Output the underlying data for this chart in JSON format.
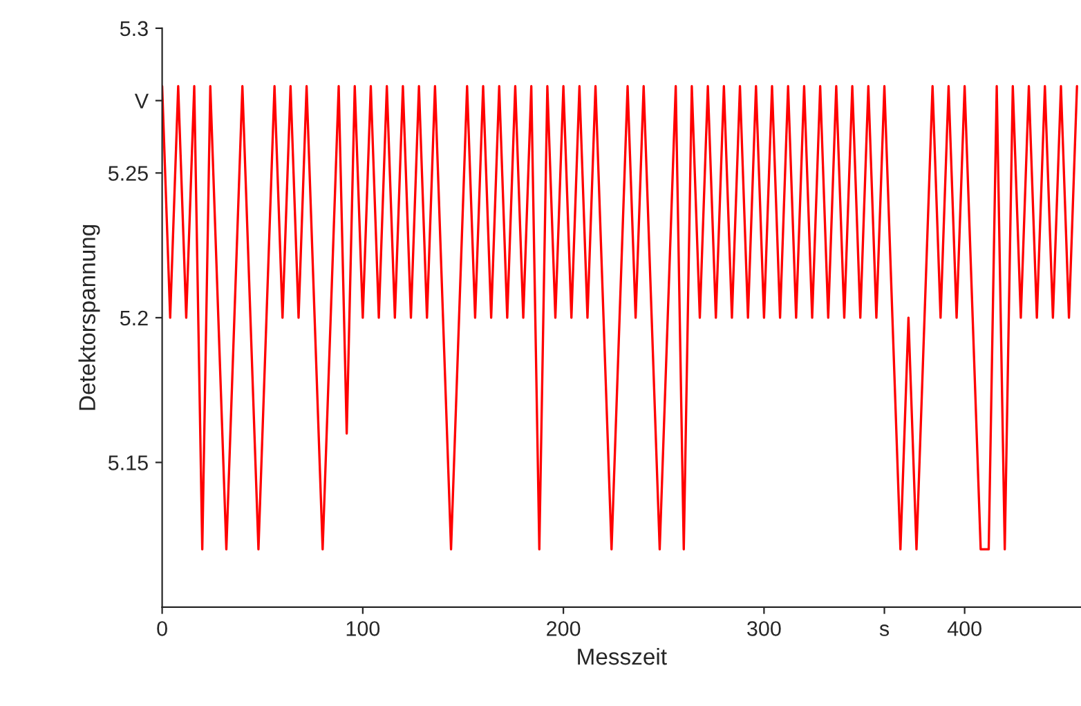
{
  "chart_data": {
    "type": "line",
    "xlabel": "Messzeit",
    "ylabel": "Detektorspannung",
    "xlim": [
      0,
      458
    ],
    "ylim": [
      5.1,
      5.3
    ],
    "xticks": [
      0,
      100,
      200,
      300,
      400,
      {
        "value": 360,
        "label": "s"
      }
    ],
    "yticks": [
      5.15,
      5.2,
      5.25,
      5.3,
      {
        "value": 5.275,
        "label": "V"
      }
    ],
    "grid": false,
    "legend": false,
    "marker": "none",
    "line_style": "solid",
    "series": [
      {
        "color": "#ff0000",
        "x": [
          0,
          4,
          8,
          12,
          16,
          20,
          24,
          28,
          32,
          36,
          40,
          44,
          48,
          52,
          56,
          60,
          64,
          68,
          72,
          76,
          80,
          84,
          88,
          92,
          96,
          100,
          104,
          108,
          112,
          116,
          120,
          124,
          128,
          132,
          136,
          140,
          144,
          148,
          152,
          156,
          160,
          164,
          168,
          172,
          176,
          180,
          184,
          188,
          192,
          196,
          200,
          204,
          208,
          212,
          216,
          220,
          224,
          228,
          232,
          236,
          240,
          244,
          248,
          252,
          256,
          260,
          264,
          268,
          272,
          276,
          280,
          284,
          288,
          292,
          296,
          300,
          304,
          308,
          312,
          316,
          320,
          324,
          328,
          332,
          336,
          340,
          344,
          348,
          352,
          356,
          360,
          364,
          368,
          372,
          376,
          380,
          384,
          388,
          392,
          396,
          400,
          404,
          408,
          412,
          416,
          420,
          424,
          428,
          432,
          436,
          440,
          444,
          448,
          452,
          456
        ],
        "values": [
          5.28,
          5.2,
          5.28,
          5.2,
          5.28,
          5.12,
          5.28,
          5.2,
          5.12,
          5.2,
          5.28,
          5.2,
          5.12,
          5.2,
          5.28,
          5.2,
          5.28,
          5.2,
          5.28,
          5.2,
          5.12,
          5.2,
          5.28,
          5.16,
          5.28,
          5.2,
          5.28,
          5.2,
          5.28,
          5.2,
          5.28,
          5.2,
          5.28,
          5.2,
          5.28,
          5.2,
          5.12,
          5.2,
          5.28,
          5.2,
          5.28,
          5.2,
          5.28,
          5.2,
          5.28,
          5.2,
          5.28,
          5.12,
          5.28,
          5.2,
          5.28,
          5.2,
          5.28,
          5.2,
          5.28,
          5.2,
          5.12,
          5.2,
          5.28,
          5.2,
          5.28,
          5.2,
          5.12,
          5.2,
          5.28,
          5.12,
          5.28,
          5.2,
          5.28,
          5.2,
          5.28,
          5.2,
          5.28,
          5.2,
          5.28,
          5.2,
          5.28,
          5.2,
          5.28,
          5.2,
          5.28,
          5.2,
          5.28,
          5.2,
          5.28,
          5.2,
          5.28,
          5.2,
          5.28,
          5.2,
          5.28,
          5.2,
          5.12,
          5.2,
          5.12,
          5.2,
          5.28,
          5.2,
          5.28,
          5.2,
          5.28,
          5.2,
          5.12,
          5.12,
          5.28,
          5.12,
          5.28,
          5.2,
          5.28,
          5.2,
          5.28,
          5.2,
          5.28,
          5.2,
          5.28
        ]
      }
    ]
  }
}
